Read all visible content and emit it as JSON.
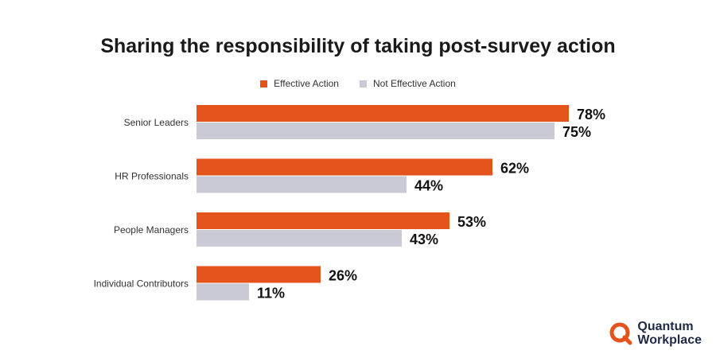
{
  "chart_data": {
    "type": "bar",
    "orientation": "horizontal",
    "title": "Sharing the responsibility of taking post-survey action",
    "categories": [
      "Senior Leaders",
      "HR Professionals",
      "People Managers",
      "Individual Contributors"
    ],
    "series": [
      {
        "name": "Effective Action",
        "values": [
          78,
          62,
          53,
          26
        ],
        "labels": [
          "78%",
          "62%",
          "53%",
          "26%"
        ],
        "color": "#e4531b"
      },
      {
        "name": "Not Effective Action",
        "values": [
          75,
          44,
          43,
          11
        ],
        "labels": [
          "75%",
          "44%",
          "43%",
          "11%"
        ],
        "color": "#c9cad4"
      }
    ],
    "xlim": [
      0,
      100
    ],
    "grid": false,
    "legend": "top-center"
  },
  "logo": {
    "line1": "Quantum",
    "line2": "Workplace",
    "color": "#e4531b",
    "text_color": "#1f2a44"
  }
}
